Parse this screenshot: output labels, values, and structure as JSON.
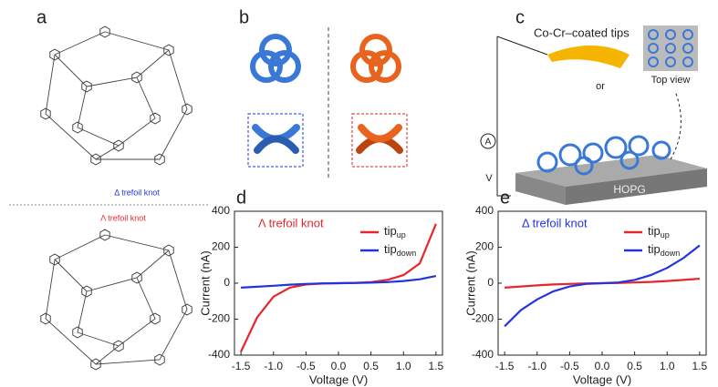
{
  "panel_a": {
    "label": "a",
    "top_label": "Δ trefoil knot",
    "bottom_label": "Λ trefoil knot"
  },
  "panel_b": {
    "label": "b"
  },
  "panel_c": {
    "label": "c",
    "tip_label": "Co-Cr–coated tips",
    "top_view": "Top view",
    "substrate": "HOPG",
    "ammeter": "A",
    "voltage": "V",
    "or": "or"
  },
  "chart_data": [
    {
      "type": "line",
      "panel_label": "d",
      "annotation": "Λ trefoil knot",
      "annotation_color": "#e8262a",
      "xlabel": "Voltage (V)",
      "ylabel": "Current (nA)",
      "x": [
        -1.5,
        -1.25,
        -1,
        -0.75,
        -0.5,
        -0.25,
        0,
        0.25,
        0.5,
        0.75,
        1,
        1.25,
        1.5
      ],
      "series": [
        {
          "name": "tip",
          "subscript": "up",
          "color": "#e8262a",
          "values": [
            -380,
            -190,
            -75,
            -25,
            -7,
            -2,
            0,
            2,
            6,
            18,
            45,
            110,
            330
          ]
        },
        {
          "name": "tip",
          "subscript": "down",
          "color": "#2233e0",
          "values": [
            -25,
            -20,
            -14,
            -8,
            -4,
            -1,
            0,
            1,
            3,
            6,
            12,
            22,
            40
          ]
        }
      ],
      "xlim": [
        -1.6,
        1.6
      ],
      "ylim": [
        -400,
        400
      ],
      "xticks": [
        -1.5,
        {
          "value": -1,
          "label": "-1.0"
        },
        -0.5,
        {
          "value": 0,
          "label": "0.0"
        },
        0.5,
        {
          "value": 1,
          "label": "1.0"
        },
        1.5
      ],
      "yticks": [
        400,
        200,
        0,
        -200,
        -400
      ]
    },
    {
      "type": "line",
      "panel_label": "e",
      "annotation": "Δ trefoil knot",
      "annotation_color": "#2233e0",
      "xlabel": "Voltage (V)",
      "ylabel": "Current (nA)",
      "x": [
        -1.5,
        -1.25,
        -1,
        -0.75,
        -0.5,
        -0.25,
        0,
        0.25,
        0.5,
        0.75,
        1,
        1.25,
        1.5
      ],
      "series": [
        {
          "name": "tip",
          "subscript": "up",
          "color": "#e8262a",
          "values": [
            -25,
            -18,
            -12,
            -7,
            -4,
            -1,
            0,
            1,
            4,
            7,
            12,
            18,
            25
          ]
        },
        {
          "name": "tip",
          "subscript": "down",
          "color": "#2233e0",
          "values": [
            -240,
            -150,
            -90,
            -45,
            -18,
            -4,
            0,
            4,
            18,
            45,
            85,
            140,
            210
          ]
        }
      ],
      "xlim": [
        -1.6,
        1.6
      ],
      "ylim": [
        -400,
        400
      ],
      "xticks": [
        -1.5,
        {
          "value": -1,
          "label": "-1.0"
        },
        -0.5,
        {
          "value": 0,
          "label": "0.0"
        },
        0.5,
        {
          "value": 1,
          "label": "1.0"
        },
        1.5
      ],
      "yticks": [
        400,
        200,
        0,
        -200,
        -400
      ]
    }
  ]
}
